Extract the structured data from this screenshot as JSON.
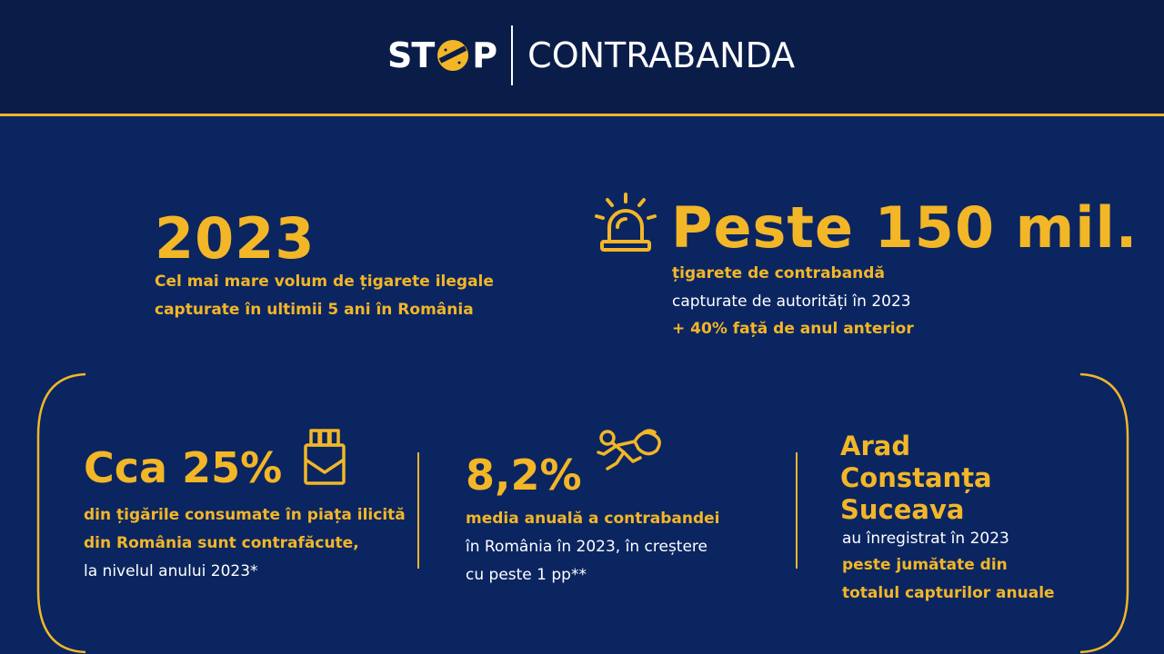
{
  "brand": {
    "stop_left": "ST",
    "stop_right": "P",
    "name": "CONTRABANDA"
  },
  "colors": {
    "background": "#0b2561",
    "header": "#0a1d49",
    "accent": "#f2b627",
    "text": "#ffffff"
  },
  "stat_2023": {
    "value": "2023",
    "line1": "Cel mai mare volum de țigarete ilegale",
    "line2": "capturate în ultimii 5 ani în România"
  },
  "stat_150": {
    "icon": "siren-icon",
    "value": "Peste 150 mil.",
    "line1": "țigarete de contrabandă",
    "line2": "capturate de autorități în 2023",
    "line3": "+ 40% față de anul anterior"
  },
  "stat_25": {
    "icon": "cigarette-pack-icon",
    "value": "Cca 25%",
    "line1": "din țigările consumate în piața ilicită",
    "line2": "din România sunt contrafăcute,",
    "line3": "la nivelul anului 2023*"
  },
  "stat_82": {
    "icon": "running-thief-icon",
    "value": "8,2%",
    "line1": "media anuală a contrabandei",
    "line2": "în România în 2023, în creștere",
    "line3": "cu peste 1 pp**"
  },
  "stat_cities": {
    "cities": [
      "Arad",
      "Constanța",
      "Suceava"
    ],
    "line1": "au înregistrat în 2023",
    "line2": "peste jumătate din",
    "line3": "totalul capturilor anuale"
  }
}
